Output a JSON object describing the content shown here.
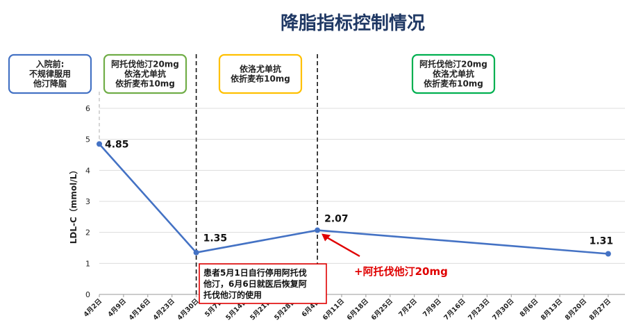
{
  "title": "降脂指标控制情况",
  "chart_data": {
    "type": "line",
    "ylabel": "LDL-C（mmol/L）",
    "ylim": [
      0,
      6
    ],
    "yticks": [
      "0",
      "1",
      "2",
      "3",
      "4",
      "5",
      "6"
    ],
    "categories": [
      "4月2日",
      "4月9日",
      "4月16日",
      "4月23日",
      "4月30日",
      "5月7日",
      "5月14日",
      "5月21日",
      "5月28日",
      "6月4日",
      "6月11日",
      "6月18日",
      "6月25日",
      "7月2日",
      "7月9日",
      "7月16日",
      "7月23日",
      "7月30日",
      "8月6日",
      "8月13日",
      "8月20日",
      "8月27日"
    ],
    "series": [
      {
        "points": [
          {
            "x": "4月2日",
            "y": 4.85,
            "label": "4.85"
          },
          {
            "x": "4月30日",
            "y": 1.35,
            "label": "1.35"
          },
          {
            "x": "6月4日",
            "y": 2.07,
            "label": "2.07"
          },
          {
            "x": "8月27日",
            "y": 1.31,
            "label": "1.31"
          }
        ],
        "color": "#4472C4"
      }
    ],
    "grid": true
  },
  "phases": [
    {
      "lines": [
        "入院前:",
        "不规律服用",
        "他汀降脂"
      ],
      "color": "#4472C4"
    },
    {
      "lines": [
        "阿托伐他汀20mg",
        "依洛尤单抗",
        "依折麦布10mg"
      ],
      "color": "#70AD47"
    },
    {
      "lines": [
        "依洛尤单抗",
        "依折麦布10mg"
      ],
      "color": "#FFC000"
    },
    {
      "lines": [
        "阿托伐他汀20mg",
        "依洛尤单抗",
        "依折麦布10mg"
      ],
      "color": "#00B050"
    }
  ],
  "note": {
    "lines": [
      "患者5月1日自行停用阿托伐",
      "他汀，6月6日就医后恢复阿",
      "托伐他汀的使用"
    ],
    "color": "#E00000"
  },
  "annotation": {
    "text": "+阿托伐他汀20mg",
    "color": "#E00000"
  }
}
